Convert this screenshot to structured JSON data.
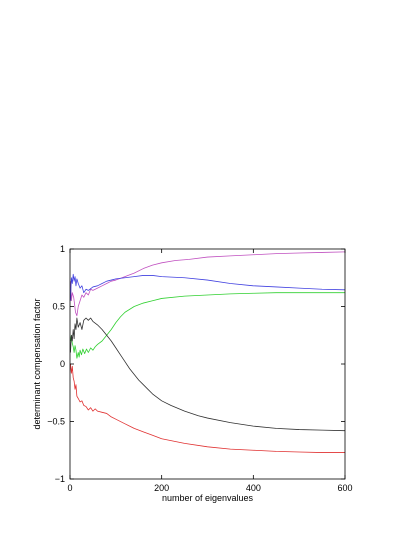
{
  "chart_data": {
    "type": "line",
    "title": "",
    "xlabel": "number of eigenvalues",
    "ylabel": "determinant compensation factor",
    "xlim": [
      0,
      600
    ],
    "ylim": [
      -1,
      1
    ],
    "x_ticks": [
      0,
      200,
      400,
      600
    ],
    "y_ticks": [
      -1,
      -0.5,
      0,
      0.5,
      1
    ],
    "x_tick_labels": [
      "0",
      "200",
      "400",
      "600"
    ],
    "y_tick_labels": [
      "−1",
      "−0.5",
      "0",
      "0.5",
      "1"
    ],
    "grid": false,
    "legend": "none",
    "series": [
      {
        "color": "#c050c0",
        "points": [
          [
            1,
            0.72
          ],
          [
            3,
            0.55
          ],
          [
            5,
            0.62
          ],
          [
            8,
            0.58
          ],
          [
            10,
            0.52
          ],
          [
            12,
            0.45
          ],
          [
            15,
            0.42
          ],
          [
            18,
            0.5
          ],
          [
            22,
            0.55
          ],
          [
            26,
            0.6
          ],
          [
            30,
            0.58
          ],
          [
            35,
            0.62
          ],
          [
            40,
            0.6
          ],
          [
            45,
            0.65
          ],
          [
            50,
            0.64
          ],
          [
            60,
            0.66
          ],
          [
            70,
            0.68
          ],
          [
            80,
            0.7
          ],
          [
            90,
            0.72
          ],
          [
            100,
            0.73
          ],
          [
            120,
            0.76
          ],
          [
            140,
            0.79
          ],
          [
            160,
            0.83
          ],
          [
            180,
            0.86
          ],
          [
            200,
            0.88
          ],
          [
            230,
            0.9
          ],
          [
            260,
            0.91
          ],
          [
            300,
            0.93
          ],
          [
            350,
            0.94
          ],
          [
            400,
            0.95
          ],
          [
            450,
            0.96
          ],
          [
            500,
            0.965
          ],
          [
            550,
            0.97
          ],
          [
            600,
            0.975
          ]
        ]
      },
      {
        "color": "#4040e0",
        "points": [
          [
            1,
            0.55
          ],
          [
            3,
            0.75
          ],
          [
            5,
            0.7
          ],
          [
            7,
            0.78
          ],
          [
            9,
            0.72
          ],
          [
            11,
            0.76
          ],
          [
            13,
            0.68
          ],
          [
            15,
            0.74
          ],
          [
            18,
            0.7
          ],
          [
            22,
            0.66
          ],
          [
            26,
            0.68
          ],
          [
            30,
            0.62
          ],
          [
            35,
            0.65
          ],
          [
            40,
            0.64
          ],
          [
            50,
            0.67
          ],
          [
            60,
            0.68
          ],
          [
            70,
            0.7
          ],
          [
            80,
            0.72
          ],
          [
            90,
            0.73
          ],
          [
            100,
            0.74
          ],
          [
            120,
            0.75
          ],
          [
            140,
            0.76
          ],
          [
            160,
            0.77
          ],
          [
            180,
            0.77
          ],
          [
            200,
            0.76
          ],
          [
            250,
            0.75
          ],
          [
            300,
            0.73
          ],
          [
            350,
            0.7
          ],
          [
            400,
            0.68
          ],
          [
            450,
            0.67
          ],
          [
            500,
            0.66
          ],
          [
            550,
            0.65
          ],
          [
            600,
            0.645
          ]
        ]
      },
      {
        "color": "#30d030",
        "points": [
          [
            1,
            0.2
          ],
          [
            3,
            0.25
          ],
          [
            5,
            0.18
          ],
          [
            7,
            0.15
          ],
          [
            9,
            0.1
          ],
          [
            11,
            0.16
          ],
          [
            13,
            0.12
          ],
          [
            15,
            0.05
          ],
          [
            18,
            0.1
          ],
          [
            20,
            0.06
          ],
          [
            22,
            0.12
          ],
          [
            25,
            0.08
          ],
          [
            28,
            0.13
          ],
          [
            32,
            0.09
          ],
          [
            36,
            0.13
          ],
          [
            40,
            0.1
          ],
          [
            45,
            0.14
          ],
          [
            50,
            0.12
          ],
          [
            55,
            0.15
          ],
          [
            60,
            0.17
          ],
          [
            70,
            0.2
          ],
          [
            80,
            0.25
          ],
          [
            90,
            0.3
          ],
          [
            100,
            0.36
          ],
          [
            110,
            0.41
          ],
          [
            120,
            0.45
          ],
          [
            140,
            0.5
          ],
          [
            160,
            0.53
          ],
          [
            180,
            0.55
          ],
          [
            200,
            0.57
          ],
          [
            250,
            0.59
          ],
          [
            300,
            0.6
          ],
          [
            350,
            0.61
          ],
          [
            400,
            0.615
          ],
          [
            450,
            0.62
          ],
          [
            500,
            0.62
          ],
          [
            550,
            0.62
          ],
          [
            600,
            0.62
          ]
        ]
      },
      {
        "color": "#303030",
        "points": [
          [
            1,
            0.1
          ],
          [
            3,
            0.25
          ],
          [
            5,
            0.2
          ],
          [
            7,
            0.3
          ],
          [
            9,
            0.22
          ],
          [
            11,
            0.35
          ],
          [
            13,
            0.3
          ],
          [
            15,
            0.4
          ],
          [
            18,
            0.32
          ],
          [
            22,
            0.36
          ],
          [
            26,
            0.3
          ],
          [
            30,
            0.38
          ],
          [
            35,
            0.4
          ],
          [
            40,
            0.38
          ],
          [
            45,
            0.4
          ],
          [
            50,
            0.37
          ],
          [
            60,
            0.34
          ],
          [
            70,
            0.3
          ],
          [
            80,
            0.25
          ],
          [
            90,
            0.2
          ],
          [
            100,
            0.14
          ],
          [
            110,
            0.08
          ],
          [
            120,
            0.02
          ],
          [
            130,
            -0.04
          ],
          [
            140,
            -0.09
          ],
          [
            150,
            -0.14
          ],
          [
            160,
            -0.18
          ],
          [
            170,
            -0.22
          ],
          [
            180,
            -0.26
          ],
          [
            200,
            -0.32
          ],
          [
            220,
            -0.36
          ],
          [
            250,
            -0.41
          ],
          [
            280,
            -0.45
          ],
          [
            300,
            -0.47
          ],
          [
            350,
            -0.51
          ],
          [
            400,
            -0.54
          ],
          [
            450,
            -0.56
          ],
          [
            500,
            -0.57
          ],
          [
            550,
            -0.575
          ],
          [
            600,
            -0.58
          ]
        ]
      },
      {
        "color": "#e03030",
        "points": [
          [
            1,
            0.0
          ],
          [
            3,
            -0.08
          ],
          [
            5,
            -0.02
          ],
          [
            7,
            -0.12
          ],
          [
            9,
            -0.15
          ],
          [
            11,
            -0.22
          ],
          [
            13,
            -0.18
          ],
          [
            15,
            -0.28
          ],
          [
            18,
            -0.3
          ],
          [
            22,
            -0.33
          ],
          [
            26,
            -0.32
          ],
          [
            30,
            -0.36
          ],
          [
            35,
            -0.37
          ],
          [
            40,
            -0.4
          ],
          [
            45,
            -0.38
          ],
          [
            50,
            -0.41
          ],
          [
            55,
            -0.39
          ],
          [
            60,
            -0.41
          ],
          [
            70,
            -0.42
          ],
          [
            80,
            -0.43
          ],
          [
            90,
            -0.46
          ],
          [
            100,
            -0.48
          ],
          [
            120,
            -0.52
          ],
          [
            140,
            -0.56
          ],
          [
            160,
            -0.59
          ],
          [
            180,
            -0.62
          ],
          [
            200,
            -0.65
          ],
          [
            250,
            -0.69
          ],
          [
            300,
            -0.72
          ],
          [
            350,
            -0.74
          ],
          [
            400,
            -0.75
          ],
          [
            450,
            -0.76
          ],
          [
            500,
            -0.765
          ],
          [
            550,
            -0.77
          ],
          [
            600,
            -0.77
          ]
        ]
      }
    ]
  }
}
